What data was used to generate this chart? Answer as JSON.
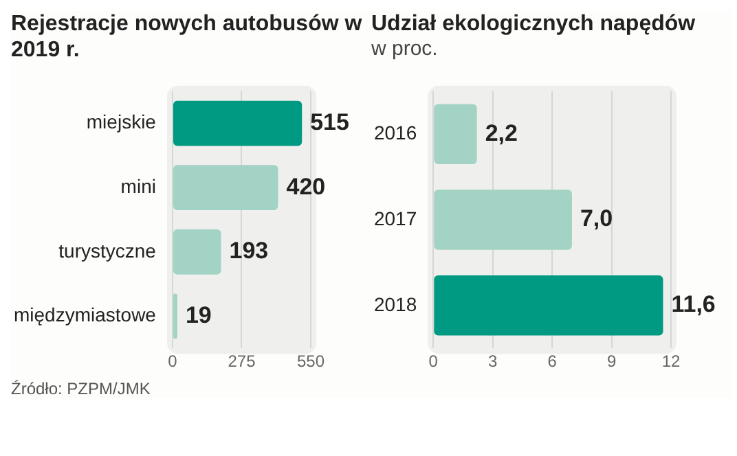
{
  "chart_data": [
    {
      "type": "bar",
      "orientation": "horizontal",
      "title": "Rejestracje nowych autobusów w 2019 r.",
      "categories": [
        "miejskie",
        "mini",
        "turystyczne",
        "międzymiastowe"
      ],
      "values": [
        515,
        420,
        193,
        19
      ],
      "colors": [
        "#009a82",
        "#a3d3c4",
        "#a3d3c4",
        "#a3d3c4"
      ],
      "xlim": [
        0,
        550
      ],
      "xticks": [
        0,
        275,
        550
      ],
      "grid": "x",
      "data_labels": true,
      "annotations": [
        "Źródło: PZPM/JMK"
      ]
    },
    {
      "type": "bar",
      "orientation": "horizontal",
      "title": "Udział ekologicznych napędów",
      "subtitle": "w proc.",
      "categories": [
        "2016",
        "2017",
        "2018"
      ],
      "values": [
        2.2,
        7.0,
        11.6
      ],
      "value_labels": [
        "2,2",
        "7,0",
        "11,6"
      ],
      "colors": [
        "#a3d3c4",
        "#a3d3c4",
        "#009a82"
      ],
      "xlim": [
        0,
        12
      ],
      "xticks": [
        0,
        3,
        6,
        9,
        12
      ],
      "grid": "x"
    }
  ]
}
